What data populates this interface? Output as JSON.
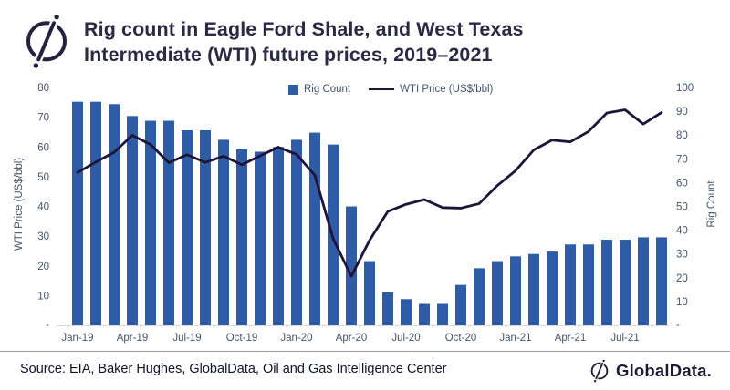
{
  "header": {
    "title_line1": "Rig count in Eagle Ford Shale, and West Texas",
    "title_line2": "Intermediate (WTI) future prices, 2019–2021"
  },
  "legend": {
    "rig_label": "Rig Count",
    "wti_label": "WTI Price (US$/bbl)"
  },
  "footer": {
    "source": "Source: EIA, Baker Hughes, GlobalData, Oil and Gas Intelligence Center",
    "brand": "GlobalData."
  },
  "colors": {
    "bar": "#2E5CA6",
    "line": "#1F1438",
    "axis_text": "#44546A",
    "baseline": "#D9D9D9"
  },
  "chart_data": {
    "type": "bar",
    "title": "Rig count in Eagle Ford Shale, and West Texas Intermediate (WTI) future prices, 2019–2021",
    "categories": [
      "Jan-19",
      "Feb-19",
      "Mar-19",
      "Apr-19",
      "May-19",
      "Jun-19",
      "Jul-19",
      "Aug-19",
      "Sep-19",
      "Oct-19",
      "Nov-19",
      "Dec-19",
      "Jan-20",
      "Feb-20",
      "Mar-20",
      "Apr-20",
      "May-20",
      "Jun-20",
      "Jul-20",
      "Aug-20",
      "Sep-20",
      "Oct-20",
      "Nov-20",
      "Dec-20",
      "Jan-21",
      "Feb-21",
      "Mar-21",
      "Apr-21",
      "May-21",
      "Jun-21",
      "Jul-21",
      "Aug-21",
      "Sep-21"
    ],
    "x_tick_labels": [
      "Jan-19",
      "Apr-19",
      "Jul-19",
      "Oct-19",
      "Jan-20",
      "Apr-20",
      "Jul-20",
      "Oct-20",
      "Jan-21",
      "Apr-21",
      "Jul-21"
    ],
    "series": [
      {
        "name": "Rig Count",
        "type": "bar",
        "axis": "right",
        "values": [
          94,
          94,
          93,
          88,
          86,
          86,
          82,
          82,
          78,
          74,
          73,
          75,
          78,
          81,
          76,
          50,
          27,
          14,
          11,
          9,
          9,
          17,
          24,
          27,
          29,
          30,
          31,
          34,
          34,
          36,
          36,
          37,
          37
        ]
      },
      {
        "name": "WTI Price (US$/bbl)",
        "type": "line",
        "axis": "left",
        "values": [
          51.4,
          54.9,
          58.2,
          63.9,
          60.8,
          54.7,
          57.4,
          54.8,
          56.9,
          54.0,
          57.0,
          59.9,
          57.5,
          50.5,
          29.2,
          16.5,
          28.6,
          38.3,
          40.7,
          42.3,
          39.6,
          39.4,
          40.9,
          47.0,
          52.0,
          59.0,
          62.3,
          61.7,
          65.2,
          71.4,
          72.5,
          67.7,
          71.6
        ]
      }
    ],
    "left_axis": {
      "label": "WTI Price (US$/bbl)",
      "min": 0,
      "max": 80,
      "tick_step": 10,
      "zero_label": "-"
    },
    "right_axis": {
      "label": "Rig Count",
      "min": 0,
      "max": 100,
      "tick_step": 10,
      "zero_label": "-"
    },
    "legend_position": "top-center",
    "grid": false
  }
}
